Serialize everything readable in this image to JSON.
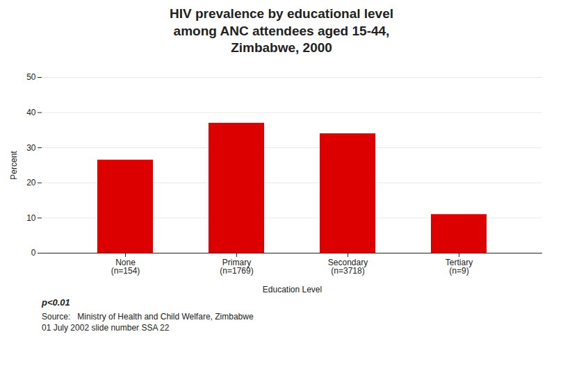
{
  "chart_data": {
    "type": "bar",
    "title": "HIV prevalence by educational level\namong ANC attendees aged 15-44,\nZimbabwe, 2000",
    "categories": [
      "None\n(n=154)",
      "Primary\n(n=1769)",
      "Secondary\n(n=3718)",
      "Tertiary\n(n=9)"
    ],
    "values": [
      26.5,
      37.0,
      34.0,
      11.0
    ],
    "color": "#DD0000",
    "xlabel": "Education Level",
    "ylabel": "Percent",
    "ylim": [
      0,
      50
    ],
    "yticks": [
      0,
      10,
      20,
      30,
      40,
      50
    ],
    "grid": true,
    "annotations": [
      "p<0.01",
      "Source:   Ministry of Health and Child Welfare, Zimbabwe",
      "01 July 2002 slide number SSA 22"
    ]
  }
}
